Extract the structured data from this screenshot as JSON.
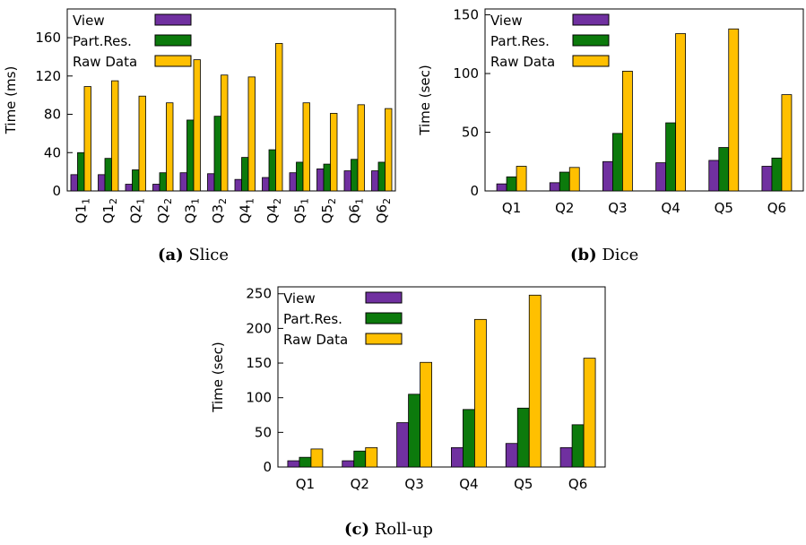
{
  "colors": {
    "view": "#7030a0",
    "partres": "#0c7a0c",
    "rawdata": "#ffc000"
  },
  "captions": [
    {
      "letter": "(a)",
      "name": "Slice"
    },
    {
      "letter": "(b)",
      "name": "Dice"
    },
    {
      "letter": "(c)",
      "name": "Roll-up"
    }
  ],
  "chart_data": [
    {
      "type": "bar",
      "ylabel": "Time (ms)",
      "ylim": [
        0,
        190
      ],
      "yticks": [
        0,
        40,
        80,
        120,
        160
      ],
      "legend_placement": "top-left",
      "categories": [
        {
          "base": "Q1",
          "sub": "1"
        },
        {
          "base": "Q1",
          "sub": "2"
        },
        {
          "base": "Q2",
          "sub": "1"
        },
        {
          "base": "Q2",
          "sub": "2"
        },
        {
          "base": "Q3",
          "sub": "1"
        },
        {
          "base": "Q3",
          "sub": "2"
        },
        {
          "base": "Q4",
          "sub": "1"
        },
        {
          "base": "Q4",
          "sub": "2"
        },
        {
          "base": "Q5",
          "sub": "1"
        },
        {
          "base": "Q5",
          "sub": "2"
        },
        {
          "base": "Q6",
          "sub": "1"
        },
        {
          "base": "Q6",
          "sub": "2"
        }
      ],
      "series": [
        {
          "name": "View",
          "values": [
            17,
            17,
            7,
            7,
            19,
            18,
            12,
            14,
            19,
            23,
            21,
            21
          ]
        },
        {
          "name": "Part.Res.",
          "values": [
            40,
            34,
            22,
            19,
            74,
            78,
            35,
            43,
            30,
            28,
            33,
            30
          ]
        },
        {
          "name": "Raw Data",
          "values": [
            109,
            115,
            99,
            92,
            137,
            121,
            119,
            154,
            92,
            81,
            90,
            86
          ]
        }
      ]
    },
    {
      "type": "bar",
      "ylabel": "Time (sec)",
      "ylim": [
        0,
        155
      ],
      "yticks": [
        0,
        50,
        100,
        150
      ],
      "legend_placement": "top-left",
      "categories": [
        {
          "base": "Q1"
        },
        {
          "base": "Q2"
        },
        {
          "base": "Q3"
        },
        {
          "base": "Q4"
        },
        {
          "base": "Q5"
        },
        {
          "base": "Q6"
        }
      ],
      "series": [
        {
          "name": "View",
          "values": [
            6,
            7,
            25,
            24,
            26,
            21
          ]
        },
        {
          "name": "Part.Res.",
          "values": [
            12,
            16,
            49,
            58,
            37,
            28
          ]
        },
        {
          "name": "Raw Data",
          "values": [
            21,
            20,
            102,
            134,
            138,
            82
          ]
        }
      ]
    },
    {
      "type": "bar",
      "ylabel": "Time (sec)",
      "ylim": [
        0,
        260
      ],
      "yticks": [
        0,
        50,
        100,
        150,
        200,
        250
      ],
      "legend_placement": "top-left",
      "categories": [
        {
          "base": "Q1"
        },
        {
          "base": "Q2"
        },
        {
          "base": "Q3"
        },
        {
          "base": "Q4"
        },
        {
          "base": "Q5"
        },
        {
          "base": "Q6"
        }
      ],
      "series": [
        {
          "name": "View",
          "values": [
            9,
            9,
            64,
            28,
            34,
            28
          ]
        },
        {
          "name": "Part.Res.",
          "values": [
            14,
            23,
            105,
            83,
            85,
            61
          ]
        },
        {
          "name": "Raw Data",
          "values": [
            26,
            28,
            151,
            213,
            248,
            157
          ]
        }
      ]
    }
  ]
}
